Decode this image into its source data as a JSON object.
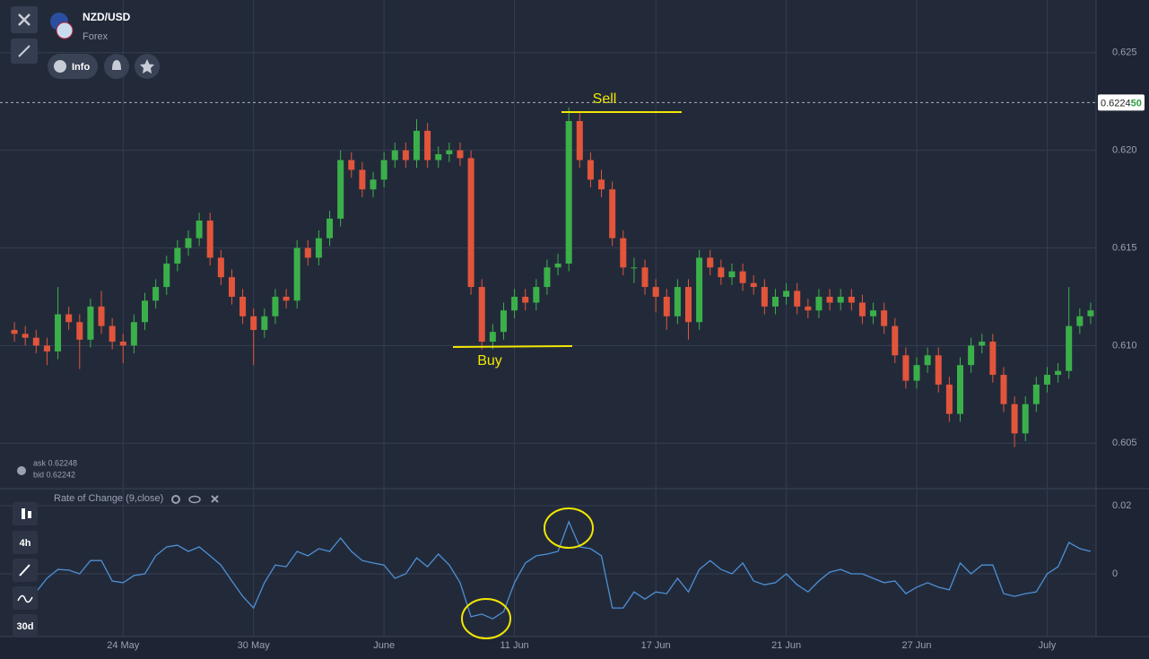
{
  "header": {
    "symbol": "NZD/USD",
    "market": "Forex",
    "info_button": "Info"
  },
  "quote": {
    "ask": "ask 0.62248",
    "bid": "bid 0.62242"
  },
  "toolbar": {
    "timeframe": "4h",
    "range": "30d"
  },
  "chart_data": [
    {
      "type": "candlestick",
      "annotations": [
        "Sell",
        "Buy"
      ],
      "up_color": "#3bb04a",
      "down_color": "#e2553b",
      "grid": true,
      "current_price": {
        "value": 0.62245,
        "label_main": "0.6224",
        "label_pips": "50"
      },
      "categories": [
        null,
        null,
        null,
        null,
        null,
        null,
        null,
        null,
        null,
        null,
        "24 May",
        null,
        null,
        null,
        null,
        null,
        null,
        null,
        null,
        null,
        null,
        null,
        "30 May",
        null,
        null,
        null,
        null,
        null,
        null,
        null,
        null,
        null,
        null,
        null,
        "June",
        null,
        null,
        null,
        null,
        null,
        null,
        null,
        null,
        null,
        null,
        null,
        "11 Jun",
        null,
        null,
        null,
        null,
        null,
        null,
        null,
        null,
        null,
        null,
        null,
        null,
        "17 Jun",
        null,
        null,
        null,
        null,
        null,
        null,
        null,
        null,
        null,
        null,
        null,
        "21 Jun",
        null,
        null,
        null,
        null,
        null,
        null,
        null,
        null,
        null,
        null,
        null,
        "27 Jun",
        null,
        null,
        null,
        null,
        null,
        null,
        null,
        null,
        null,
        null,
        null,
        "July",
        null,
        null,
        null,
        null
      ],
      "open": [
        0.6108,
        0.6106,
        0.6104,
        0.61,
        0.6097,
        0.6116,
        0.6112,
        0.6103,
        0.612,
        0.611,
        0.6102,
        0.61,
        0.6112,
        0.6123,
        0.613,
        0.6142,
        0.615,
        0.6155,
        0.6164,
        0.6145,
        0.6135,
        0.6125,
        0.6115,
        0.6108,
        0.6115,
        0.6125,
        0.6123,
        0.615,
        0.6145,
        0.6155,
        0.6165,
        0.6195,
        0.619,
        0.618,
        0.6185,
        0.6195,
        0.62,
        0.6195,
        0.621,
        0.6195,
        0.6198,
        0.62,
        0.6196,
        0.613,
        0.6102,
        0.6107,
        0.6118,
        0.6125,
        0.6122,
        0.613,
        0.614,
        0.6142,
        0.6215,
        0.6195,
        0.6185,
        0.618,
        0.6155,
        0.614,
        0.614,
        0.613,
        0.6125,
        0.6115,
        0.613,
        0.6112,
        0.6145,
        0.614,
        0.6135,
        0.6138,
        0.6132,
        0.613,
        0.612,
        0.6125,
        0.6128,
        0.612,
        0.6118,
        0.6125,
        0.6122,
        0.6125,
        0.6122,
        0.6115,
        0.6118,
        0.611,
        0.6095,
        0.6082,
        0.609,
        0.6095,
        0.608,
        0.6065,
        0.609,
        0.61,
        0.6102,
        0.6085,
        0.607,
        0.6055,
        0.607,
        0.608,
        0.6085,
        0.6087,
        0.611,
        0.6115
      ],
      "high": [
        0.6112,
        0.611,
        0.6108,
        0.6104,
        0.613,
        0.612,
        0.6116,
        0.6124,
        0.6128,
        0.6114,
        0.6106,
        0.6116,
        0.6127,
        0.6134,
        0.6146,
        0.6154,
        0.6159,
        0.6168,
        0.6168,
        0.6149,
        0.6139,
        0.6129,
        0.6119,
        0.6119,
        0.6129,
        0.6129,
        0.6154,
        0.6154,
        0.6159,
        0.6169,
        0.62,
        0.6199,
        0.6194,
        0.6189,
        0.6199,
        0.6204,
        0.6204,
        0.6216,
        0.6214,
        0.6202,
        0.6204,
        0.6204,
        0.62,
        0.6134,
        0.6111,
        0.6122,
        0.6129,
        0.6129,
        0.6134,
        0.6144,
        0.6147,
        0.6222,
        0.6219,
        0.6199,
        0.619,
        0.6184,
        0.6159,
        0.6145,
        0.6144,
        0.6134,
        0.6129,
        0.6134,
        0.6134,
        0.6149,
        0.6149,
        0.6144,
        0.6142,
        0.6142,
        0.6136,
        0.6134,
        0.6129,
        0.6132,
        0.6132,
        0.6124,
        0.6129,
        0.6129,
        0.6129,
        0.6129,
        0.6126,
        0.6122,
        0.6122,
        0.6114,
        0.6099,
        0.6094,
        0.6099,
        0.6099,
        0.6084,
        0.6094,
        0.6104,
        0.6106,
        0.6106,
        0.6089,
        0.6074,
        0.6074,
        0.6084,
        0.6089,
        0.6091,
        0.613,
        0.6119,
        0.6122
      ],
      "low": [
        0.6102,
        0.61,
        0.6096,
        0.609,
        0.6093,
        0.6108,
        0.6088,
        0.6099,
        0.6106,
        0.6098,
        0.6091,
        0.6096,
        0.6108,
        0.6119,
        0.6126,
        0.6138,
        0.6146,
        0.6151,
        0.6141,
        0.6131,
        0.6121,
        0.6111,
        0.609,
        0.6104,
        0.6111,
        0.6119,
        0.6119,
        0.6141,
        0.6141,
        0.6151,
        0.6161,
        0.6186,
        0.6176,
        0.6176,
        0.6181,
        0.6191,
        0.6191,
        0.6191,
        0.6191,
        0.6191,
        0.6194,
        0.6192,
        0.6126,
        0.6098,
        0.6098,
        0.6103,
        0.6114,
        0.6118,
        0.6118,
        0.6126,
        0.6136,
        0.6138,
        0.6191,
        0.6181,
        0.6176,
        0.6151,
        0.6136,
        0.6132,
        0.6126,
        0.6117,
        0.6108,
        0.6111,
        0.6103,
        0.6108,
        0.6136,
        0.6131,
        0.6131,
        0.6128,
        0.6126,
        0.6116,
        0.6116,
        0.6121,
        0.6116,
        0.6114,
        0.6114,
        0.6118,
        0.6118,
        0.6118,
        0.6111,
        0.6111,
        0.6106,
        0.6091,
        0.6078,
        0.6078,
        0.6086,
        0.6076,
        0.6061,
        0.6061,
        0.6086,
        0.6096,
        0.6081,
        0.6066,
        0.6048,
        0.6051,
        0.6066,
        0.6076,
        0.6081,
        0.6083,
        0.6106,
        0.6111
      ],
      "close": [
        0.6106,
        0.6104,
        0.61,
        0.6097,
        0.6116,
        0.6112,
        0.6103,
        0.612,
        0.611,
        0.6102,
        0.61,
        0.6112,
        0.6123,
        0.613,
        0.6142,
        0.615,
        0.6155,
        0.6164,
        0.6145,
        0.6135,
        0.6125,
        0.6115,
        0.6108,
        0.6115,
        0.6125,
        0.6123,
        0.615,
        0.6145,
        0.6155,
        0.6165,
        0.6195,
        0.619,
        0.618,
        0.6185,
        0.6195,
        0.62,
        0.6195,
        0.621,
        0.6195,
        0.6198,
        0.62,
        0.6196,
        0.613,
        0.6102,
        0.6107,
        0.6118,
        0.6125,
        0.6122,
        0.613,
        0.614,
        0.6142,
        0.6215,
        0.6195,
        0.6185,
        0.618,
        0.6155,
        0.614,
        0.614,
        0.613,
        0.6125,
        0.6115,
        0.613,
        0.6112,
        0.6145,
        0.614,
        0.6135,
        0.6138,
        0.6132,
        0.613,
        0.612,
        0.6125,
        0.6128,
        0.612,
        0.6118,
        0.6125,
        0.6122,
        0.6125,
        0.6122,
        0.6115,
        0.6118,
        0.611,
        0.6095,
        0.6082,
        0.609,
        0.6095,
        0.608,
        0.6065,
        0.609,
        0.61,
        0.6102,
        0.6085,
        0.607,
        0.6055,
        0.607,
        0.608,
        0.6085,
        0.6087,
        0.611,
        0.6115,
        0.6118
      ],
      "ylim": [
        0.6029,
        0.6277
      ],
      "yticks": [
        0.605,
        {
          "value": 0.61,
          "label": "0.610"
        },
        0.615,
        {
          "value": 0.62,
          "label": "0.620"
        },
        0.625
      ]
    },
    {
      "type": "line",
      "title": "Rate of Change (9,close)",
      "color": "#4e8fd4",
      "grid": true,
      "values": [
        -0.0053,
        -0.0039,
        -0.0053,
        -0.0013,
        0.0013,
        0.0011,
        0,
        0.0039,
        0.0039,
        -0.0021,
        -0.0026,
        -0.0005,
        0,
        0.0053,
        0.0079,
        0.0084,
        0.0066,
        0.0079,
        0.0053,
        0.0026,
        -0.0021,
        -0.0066,
        -0.01,
        -0.0026,
        0.0026,
        0.0021,
        0.0066,
        0.0053,
        0.0074,
        0.0066,
        0.0105,
        0.0066,
        0.0039,
        0.0032,
        0.0026,
        -0.0013,
        0,
        0.0047,
        0.0021,
        0.0058,
        0.0026,
        -0.0026,
        -0.0126,
        -0.0118,
        -0.0132,
        -0.0111,
        -0.0026,
        0.0032,
        0.0053,
        0.0058,
        0.0066,
        0.0153,
        0.0079,
        0.0074,
        0.0053,
        -0.01,
        -0.01,
        -0.0053,
        -0.0074,
        -0.0053,
        -0.0058,
        -0.0013,
        -0.0053,
        0.0013,
        0.0039,
        0.0013,
        0,
        0.0032,
        -0.0021,
        -0.0032,
        -0.0026,
        0,
        -0.0032,
        -0.0053,
        -0.0021,
        0.0005,
        0.0013,
        0,
        0,
        -0.0013,
        -0.0026,
        -0.0021,
        -0.0058,
        -0.0039,
        -0.0026,
        -0.0039,
        -0.0047,
        0.0032,
        0,
        0.0026,
        0.0026,
        -0.0058,
        -0.0066,
        -0.0058,
        -0.0053,
        0,
        0.0021,
        0.0092,
        0.0074,
        0.0066
      ],
      "ylim": [
        -0.0184,
        0.025
      ],
      "yticks": [
        0,
        0.02
      ]
    }
  ]
}
